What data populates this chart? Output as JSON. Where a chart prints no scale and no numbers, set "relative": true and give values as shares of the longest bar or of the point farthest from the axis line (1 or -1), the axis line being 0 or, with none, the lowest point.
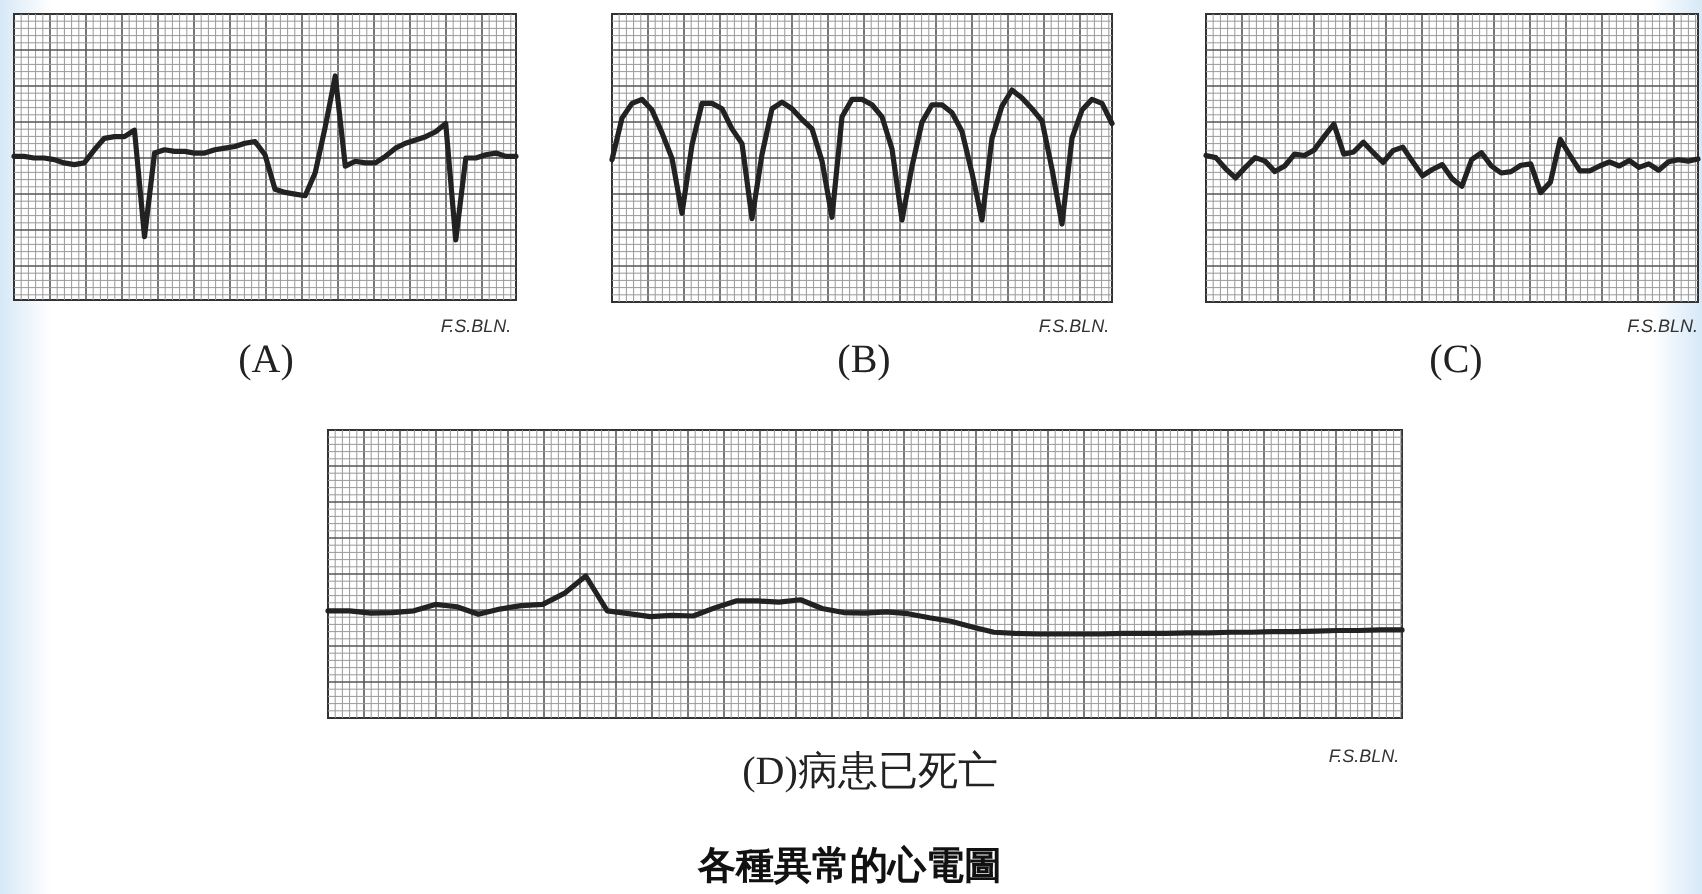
{
  "chart_data": [
    {
      "type": "line",
      "title": "(A)",
      "relative": true,
      "grid": true,
      "color": "#222222",
      "annotations": [
        "F.S.BLN."
      ],
      "categories": [
        null,
        null,
        null,
        null,
        null,
        null,
        null,
        null,
        null,
        null,
        null,
        null,
        null,
        null,
        null,
        null,
        null,
        null,
        null,
        null,
        null,
        null,
        null,
        null,
        null,
        null,
        null,
        null,
        null,
        null,
        null,
        null,
        null,
        null,
        null,
        null,
        null,
        null,
        null,
        null,
        null,
        null,
        null,
        null,
        null,
        null,
        null,
        null,
        null,
        null,
        null
      ],
      "values": [
        0.51,
        0.51,
        0.5,
        0.5,
        0.49,
        0.47,
        0.46,
        0.47,
        0.55,
        0.62,
        0.63,
        0.63,
        0.67,
        0.02,
        0.53,
        0.55,
        0.54,
        0.54,
        0.53,
        0.53,
        0.55,
        0.56,
        0.57,
        0.59,
        0.6,
        0.52,
        0.31,
        0.29,
        0.28,
        0.27,
        0.41,
        0.69,
        1.0,
        0.45,
        0.48,
        0.47,
        0.47,
        0.51,
        0.56,
        0.59,
        0.61,
        0.63,
        0.66,
        0.71,
        0,
        0.5,
        0.5,
        0.52,
        0.53,
        0.51,
        0.51
      ]
    },
    {
      "type": "line",
      "title": "(B)",
      "relative": true,
      "grid": true,
      "color": "#222222",
      "annotations": [
        "F.S.BLN."
      ],
      "categories": [
        null,
        null,
        null,
        null,
        null,
        null,
        null,
        null,
        null,
        null,
        null,
        null,
        null,
        null,
        null,
        null,
        null,
        null,
        null,
        null,
        null,
        null,
        null,
        null,
        null,
        null,
        null,
        null,
        null,
        null,
        null,
        null,
        null,
        null,
        null,
        null,
        null,
        null,
        null,
        null,
        null,
        null,
        null,
        null,
        null,
        null,
        null,
        null,
        null,
        null,
        null
      ],
      "values": [
        0.48,
        0.79,
        0.9,
        0.93,
        0.85,
        0.68,
        0.49,
        0.08,
        0.59,
        0.9,
        0.9,
        0.86,
        0.71,
        0.6,
        0.04,
        0.52,
        0.86,
        0.91,
        0.86,
        0.78,
        0.71,
        0.47,
        0.05,
        0.8,
        0.93,
        0.93,
        0.89,
        0.8,
        0.56,
        0.03,
        0.43,
        0.76,
        0.89,
        0.89,
        0.83,
        0.69,
        0.38,
        0.03,
        0.64,
        0.88,
        1.0,
        0.94,
        0.86,
        0.77,
        0.41,
        0,
        0.64,
        0.85,
        0.93,
        0.9,
        0.75
      ]
    },
    {
      "type": "line",
      "title": "(C)",
      "relative": true,
      "grid": true,
      "color": "#222222",
      "annotations": [
        "F.S.BLN."
      ],
      "categories": [
        null,
        null,
        null,
        null,
        null,
        null,
        null,
        null,
        null,
        null,
        null,
        null,
        null,
        null,
        null,
        null,
        null,
        null,
        null,
        null,
        null,
        null,
        null,
        null,
        null,
        null,
        null,
        null,
        null,
        null,
        null,
        null,
        null,
        null,
        null,
        null,
        null,
        null,
        null,
        null,
        null,
        null,
        null,
        null,
        null,
        null,
        null,
        null,
        null,
        null,
        null
      ],
      "values": [
        0.55,
        0.52,
        0.36,
        0.23,
        0.38,
        0.52,
        0.47,
        0.32,
        0.4,
        0.57,
        0.55,
        0.63,
        0.82,
        1.0,
        0.57,
        0.6,
        0.74,
        0.59,
        0.45,
        0.62,
        0.67,
        0.46,
        0.26,
        0.35,
        0.42,
        0.22,
        0.11,
        0.49,
        0.59,
        0.4,
        0.3,
        0.32,
        0.41,
        0.43,
        0.02,
        0.17,
        0.78,
        0.55,
        0.33,
        0.33,
        0.4,
        0.46,
        0.4,
        0.48,
        0.38,
        0.43,
        0.34,
        0.46,
        0.49,
        0.47,
        0.5
      ]
    },
    {
      "type": "line",
      "title": "(D)病患已死亡",
      "relative": true,
      "grid": true,
      "color": "#222222",
      "annotations": [
        "F.S.BLN.",
        "各種異常的心電圖"
      ],
      "categories": [
        null,
        null,
        null,
        null,
        null,
        null,
        null,
        null,
        null,
        null,
        null,
        null,
        null,
        null,
        null,
        null,
        null,
        null,
        null,
        null,
        null,
        null,
        null,
        null,
        null,
        null,
        null,
        null,
        null,
        null,
        null,
        null,
        null,
        null,
        null,
        null,
        null,
        null,
        null,
        null,
        null,
        null,
        null,
        null,
        null,
        null,
        null,
        null,
        null,
        null,
        null
      ],
      "values": [
        0.4,
        0.4,
        0.36,
        0.37,
        0.4,
        0.51,
        0.47,
        0.34,
        0.43,
        0.49,
        0.51,
        0.7,
        1.0,
        0.4,
        0.35,
        0.3,
        0.32,
        0.31,
        0.45,
        0.57,
        0.57,
        0.55,
        0.59,
        0.44,
        0.37,
        0.36,
        0.38,
        0.35,
        0.28,
        0.22,
        0.12,
        0.03,
        0.01,
        0,
        0,
        0,
        0,
        0.01,
        0.01,
        0.01,
        0.02,
        0.02,
        0.03,
        0.03,
        0.04,
        0.04,
        0.05,
        0.06,
        0.06,
        0.07,
        0.07
      ]
    }
  ]
}
